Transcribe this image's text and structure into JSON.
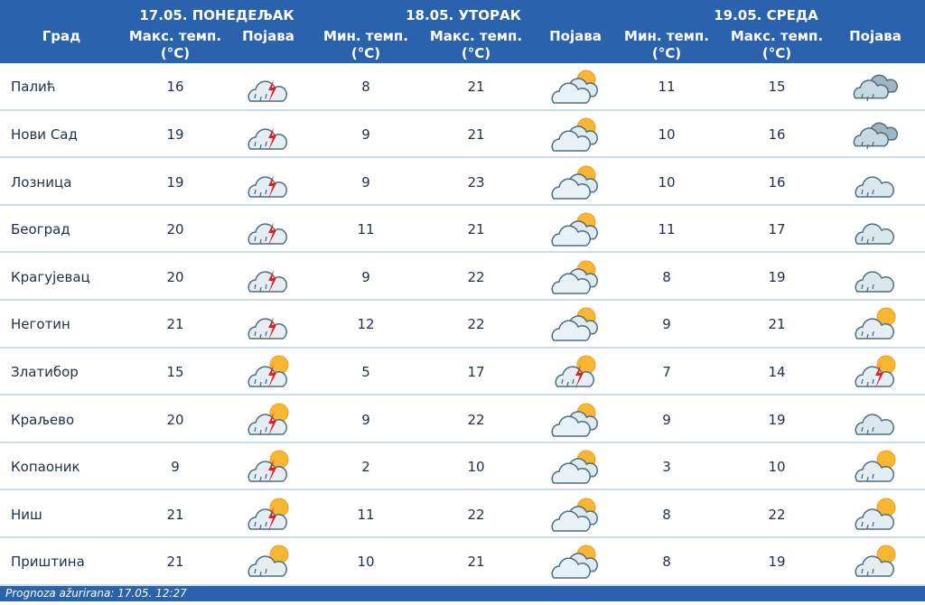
{
  "header": {
    "city_label": "Град",
    "days": [
      {
        "title": "17.05. ПОНЕДЕЉАК",
        "columns": [
          {
            "label": "Макс. темп.",
            "unit": "(°C)"
          },
          {
            "label": "Појава"
          }
        ]
      },
      {
        "title": "18.05. УТОРАК",
        "columns": [
          {
            "label": "Мин. темп.",
            "unit": "(°C)"
          },
          {
            "label": "Макс. темп.",
            "unit": "(°C)"
          },
          {
            "label": "Појава"
          }
        ]
      },
      {
        "title": "19.05. СРЕДА",
        "columns": [
          {
            "label": "Мин. темп.",
            "unit": "(°C)"
          },
          {
            "label": "Макс. темп.",
            "unit": "(°C)"
          },
          {
            "label": "Појава"
          }
        ]
      }
    ]
  },
  "rows": [
    {
      "city": "Палић",
      "values": [
        16,
        8,
        21,
        11,
        15
      ]
    },
    {
      "city": "Нови Сад",
      "values": [
        19,
        9,
        21,
        10,
        16
      ]
    },
    {
      "city": "Лозница",
      "values": [
        19,
        9,
        23,
        10,
        16
      ]
    },
    {
      "city": "Београд",
      "values": [
        20,
        11,
        21,
        11,
        17
      ]
    },
    {
      "city": "Крагујевац",
      "values": [
        20,
        9,
        22,
        8,
        19
      ]
    },
    {
      "city": "Неготин",
      "values": [
        21,
        12,
        22,
        9,
        21
      ]
    },
    {
      "city": "Златибор",
      "values": [
        15,
        5,
        17,
        7,
        14
      ]
    },
    {
      "city": "Краљево",
      "values": [
        20,
        9,
        22,
        9,
        19
      ]
    },
    {
      "city": "Копаоник",
      "values": [
        9,
        2,
        10,
        3,
        10
      ]
    },
    {
      "city": "Ниш",
      "values": [
        21,
        11,
        22,
        8,
        22
      ]
    },
    {
      "city": "Приштина",
      "values": [
        21,
        10,
        21,
        8,
        19
      ]
    }
  ],
  "footer": "Prognoza ažurirana:  17.05. 12:27"
}
